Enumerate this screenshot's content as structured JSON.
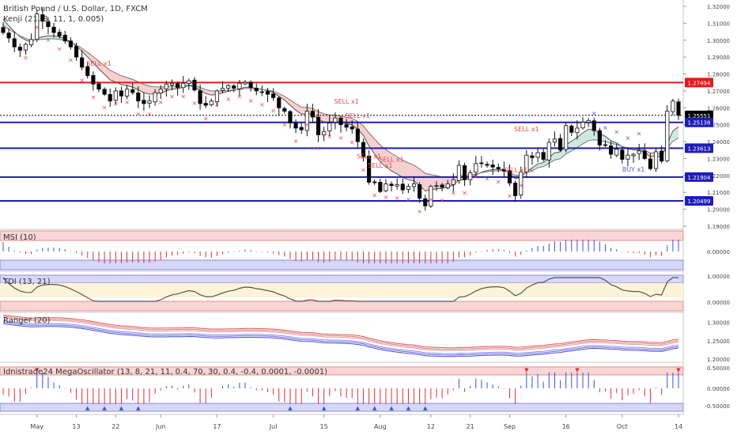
{
  "header": {
    "symbol": "British Pound / U.S. Dollar, 1D, FXCM",
    "indicator": "Kenji (21, 8, 11, 1, 0.005)"
  },
  "colors": {
    "candle_up": "#ffffff",
    "candle_down": "#000000",
    "resistance_line": "#e8181a",
    "support_line": "#1d1db8",
    "sell_marker": "#e8464a",
    "buy_marker": "#5a5ae0",
    "cloud_bear": "#f6caca",
    "cloud_bull": "#c9e6dd",
    "price_tag_bg": "#000000"
  },
  "chart_data": [
    {
      "type": "line",
      "name": "price",
      "y_axis_ticks": [
        "1.32000",
        "1.31000",
        "1.30000",
        "1.29000",
        "1.28000",
        "1.27000",
        "1.26000",
        "1.25000",
        "1.24000",
        "1.23000",
        "1.22000",
        "1.21000",
        "1.20000",
        "1.19000"
      ],
      "ylim": [
        1.19,
        1.32
      ],
      "x_axis_labels": [
        "May",
        "13",
        "22",
        "Jun",
        "17",
        "Jul",
        "15",
        "Aug",
        "12",
        "21",
        "Sep",
        "16",
        "Oct",
        "14"
      ],
      "horizontal_levels": [
        {
          "label": "1.27494",
          "value": 1.27494,
          "color": "#e8181a"
        },
        {
          "label": "1.25551",
          "value": 1.25551,
          "color": "#000000"
        },
        {
          "label": "1.25138",
          "value": 1.25138,
          "color": "#1d1db8"
        },
        {
          "label": "1.23613",
          "value": 1.23613,
          "color": "#1d1db8"
        },
        {
          "label": "1.21904",
          "value": 1.21904,
          "color": "#1d1db8"
        },
        {
          "label": "1.20499",
          "value": 1.20499,
          "color": "#1d1db8"
        }
      ],
      "close": [
        1.3045,
        1.3013,
        1.296,
        1.294,
        1.2975,
        1.3004,
        1.3155,
        1.3112,
        1.308,
        1.3045,
        1.3025,
        1.2995,
        1.296,
        1.29,
        1.284,
        1.279,
        1.274,
        1.271,
        1.268,
        1.264,
        1.27,
        1.267,
        1.271,
        1.269,
        1.264,
        1.2625,
        1.264,
        1.269,
        1.271,
        1.274,
        1.2745,
        1.272,
        1.2745,
        1.276,
        1.2705,
        1.2625,
        1.2615,
        1.264,
        1.27,
        1.2715,
        1.273,
        1.2715,
        1.2745,
        1.275,
        1.272,
        1.27,
        1.2695,
        1.268,
        1.266,
        1.26,
        1.258,
        1.251,
        1.248,
        1.247,
        1.258,
        1.2545,
        1.244,
        1.246,
        1.251,
        1.254,
        1.25,
        1.2485,
        1.2475,
        1.24,
        1.231,
        1.216,
        1.216,
        1.2105,
        1.215,
        1.214,
        1.2145,
        1.2115,
        1.2135,
        1.215,
        1.2065,
        1.202,
        1.2135,
        1.214,
        1.213,
        1.215,
        1.2175,
        1.226,
        1.2175,
        1.2215,
        1.227,
        1.227,
        1.226,
        1.225,
        1.224,
        1.2225,
        1.2155,
        1.208,
        1.222,
        1.232,
        1.2305,
        1.2335,
        1.2295,
        1.2395,
        1.2415,
        1.235,
        1.2495,
        1.2455,
        1.248,
        1.2515,
        1.2525,
        1.2465,
        1.238,
        1.238,
        1.2325,
        1.2355,
        1.2295,
        1.232,
        1.2325,
        1.2345,
        1.23,
        1.224,
        1.234,
        1.2285,
        1.258,
        1.264,
        1.2555
      ],
      "series_lines": [
        {
          "name": "Kenji fast",
          "values": [
            1.3125,
            1.3085,
            1.305,
            1.302,
            1.3,
            1.299,
            1.301,
            1.302,
            1.3025,
            1.3025,
            1.302,
            1.3008,
            1.299,
            1.2965,
            1.2935,
            1.29,
            1.2865,
            1.283,
            1.2798,
            1.2765,
            1.2752,
            1.2736,
            1.2732,
            1.2722,
            1.2706,
            1.269,
            1.2681,
            1.2682,
            1.2688,
            1.27,
            1.271,
            1.2713,
            1.2721,
            1.2731,
            1.2725,
            1.2702,
            1.2684,
            1.2675,
            1.268,
            1.2688,
            1.2698,
            1.2702,
            1.2713,
            1.2722,
            1.2721,
            1.2715,
            1.2709,
            1.2701,
            1.269,
            1.2668,
            1.2646,
            1.2615,
            1.2586,
            1.2562,
            1.2566,
            1.2561,
            1.2533,
            1.2516,
            1.2514,
            1.2521,
            1.2514,
            1.2506,
            1.2499,
            1.2474,
            1.2437,
            1.2374,
            1.2328,
            1.2281,
            1.2251,
            1.2227,
            1.2208,
            1.2188,
            1.2175,
            1.2168,
            1.2141,
            1.2108,
            1.2115,
            1.2121,
            1.2124,
            1.2132,
            1.2143,
            1.2174,
            1.2174,
            1.2184,
            1.2203,
            1.2219,
            1.2229,
            1.2235,
            1.2237,
            1.2234,
            1.2212,
            1.218,
            1.219,
            1.2223,
            1.2245,
            1.2268,
            1.2277,
            1.2307,
            1.2334,
            1.234,
            1.2381,
            1.2402,
            1.2425,
            1.2452,
            1.2473,
            1.247,
            1.2447,
            1.2431,
            1.2405,
            1.2393,
            1.237,
            1.2358,
            1.2351,
            1.2349,
            1.2336,
            1.2309,
            1.2318,
            1.2307,
            1.2388,
            1.2463,
            1.2488
          ]
        },
        {
          "name": "Kenji slow",
          "values": [
            1.3085,
            1.3065,
            1.3045,
            1.3025,
            1.301,
            1.3,
            1.3002,
            1.3005,
            1.3008,
            1.3008,
            1.3005,
            1.2998,
            1.2988,
            1.2972,
            1.2952,
            1.2928,
            1.2903,
            1.2876,
            1.2849,
            1.2822,
            1.2806,
            1.2789,
            1.2779,
            1.2768,
            1.2754,
            1.2739,
            1.2728,
            1.2724,
            1.2723,
            1.2725,
            1.2728,
            1.2728,
            1.273,
            1.2735,
            1.2732,
            1.272,
            1.2708,
            1.27,
            1.2699,
            1.27,
            1.2704,
            1.2705,
            1.2709,
            1.2714,
            1.2714,
            1.2712,
            1.2709,
            1.2705,
            1.2698,
            1.2684,
            1.2668,
            1.2647,
            1.2625,
            1.2604,
            1.2602,
            1.2596,
            1.2578,
            1.2564,
            1.2558,
            1.2557,
            1.2551,
            1.2544,
            1.2537,
            1.252,
            1.2494,
            1.2452,
            1.2416,
            1.238,
            1.2353,
            1.233,
            1.231,
            1.229,
            1.2274,
            1.2261,
            1.2239,
            1.2212,
            1.2205,
            1.2199,
            1.2192,
            1.2189,
            1.2188,
            1.22,
            1.2198,
            1.22,
            1.2208,
            1.2216,
            1.2222,
            1.2226,
            1.2228,
            1.2228,
            1.2218,
            1.2201,
            1.2203,
            1.2218,
            1.223,
            1.2245,
            1.2253,
            1.2272,
            1.2291,
            1.2299,
            1.2327,
            1.2345,
            1.2365,
            1.2387,
            1.2406,
            1.2411,
            1.2405,
            1.24,
            1.2389,
            1.2384,
            1.2371,
            1.2363,
            1.2358,
            1.2356,
            1.2349,
            1.2333,
            1.2334,
            1.2326,
            1.2362,
            1.2402,
            1.2421
          ]
        }
      ],
      "signals": [
        {
          "text": "SELL x1",
          "bar": 17
        },
        {
          "text": "SELL x1",
          "bar": 61
        },
        {
          "text": "SELL x1",
          "bar": 63
        },
        {
          "text": "SELL x1",
          "bar": 65
        },
        {
          "text": "SELL x1",
          "bar": 67
        },
        {
          "text": "SELL x1",
          "bar": 69
        },
        {
          "text": "SELL x1",
          "bar": 91
        },
        {
          "text": "SELL x1",
          "bar": 93
        },
        {
          "text": "BUY x1",
          "bar": 112
        },
        {
          "text": "BUY x1",
          "bar": 124
        }
      ]
    },
    {
      "type": "bar",
      "name": "MSI (10)",
      "title": "MSI (10)",
      "y_axis_ticks": [
        "0.00000"
      ],
      "note_series": "red bars below zero = bearish, blue bars above zero = bullish"
    },
    {
      "type": "line",
      "name": "TDI (13, 21)",
      "title": "TDI (13, 21)",
      "y_axis_ticks": [
        "1.00000",
        "0.00000"
      ]
    },
    {
      "type": "line",
      "name": "Ranger (20)",
      "title": "Ranger (20)",
      "y_axis_ticks": [
        "1.30000",
        "1.25000",
        "1.20000"
      ]
    },
    {
      "type": "bar",
      "name": "Idnistrade24 MegaOscillator",
      "title": "Idnistrade24 MegaOscillator (13, 8, 21, 11, 0.4, 70, 30, 0.4, -0.4, 0.0001, -0.0001)",
      "y_axis_ticks": [
        "0.50000",
        "0.00000",
        "-0.50000"
      ]
    }
  ]
}
